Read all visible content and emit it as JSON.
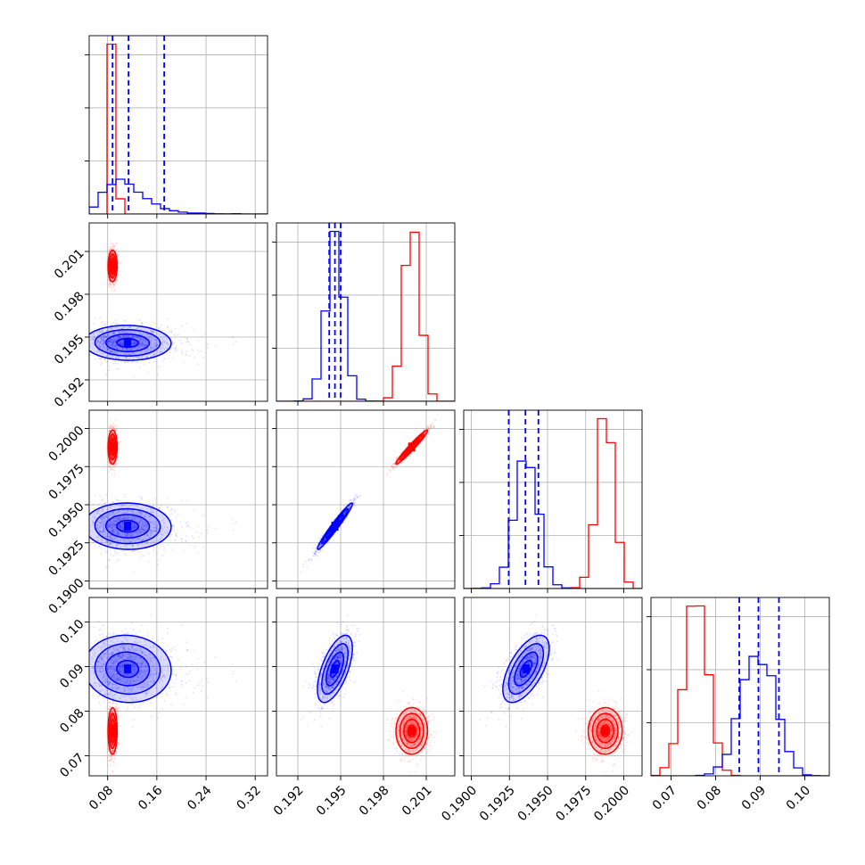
{
  "chart_data": {
    "type": "corner",
    "parameters": 4,
    "series": [
      {
        "color": "#ff0000",
        "params": [
          {
            "mean": 0.088,
            "sd": 0.004,
            "pos": "left"
          },
          {
            "mean": 0.2,
            "sd": 0.00055
          },
          {
            "mean": 0.1988,
            "sd": 0.00055
          },
          {
            "mean": 0.0755,
            "sd": 0.0026
          }
        ],
        "corr": [
          [
            1,
            0,
            0,
            0
          ],
          [
            0,
            1,
            0.97,
            0
          ],
          [
            0,
            0.97,
            1,
            0
          ],
          [
            0,
            0,
            0,
            1
          ]
        ]
      },
      {
        "color": "#0000ff",
        "params": [
          {
            "mean": 0.11,
            "sd": 0.033,
            "pos": "skew"
          },
          {
            "mean": 0.1946,
            "sd": 0.0006
          },
          {
            "mean": 0.1936,
            "sd": 0.00075
          },
          {
            "mean": 0.0895,
            "sd": 0.0037
          }
        ],
        "corr": [
          [
            1,
            0,
            0,
            0
          ],
          [
            0,
            1,
            0.97,
            0.6
          ],
          [
            0,
            0.97,
            1,
            0.6
          ],
          [
            0,
            0.6,
            0.6,
            1
          ]
        ]
      }
    ],
    "quantile_lines": {
      "color": "#0000ff",
      "values": [
        [
          0.088,
          0.114,
          0.172
        ],
        [
          0.1942,
          0.1946,
          0.195
        ],
        [
          0.19245,
          0.19355,
          0.1944
        ],
        [
          0.0853,
          0.0896,
          0.0942
        ]
      ]
    },
    "axes": [
      {
        "range": [
          0.05,
          0.34
        ],
        "ticks": [
          "0.08",
          "0.16",
          "0.24",
          "0.32"
        ]
      },
      {
        "range": [
          0.1905,
          0.203
        ],
        "ticks": [
          "0.192",
          "0.195",
          "0.198",
          "0.201"
        ]
      },
      {
        "range": [
          0.1895,
          0.2012
        ],
        "ticks": [
          "0.1900",
          "0.1925",
          "0.1950",
          "0.1975",
          "0.2000"
        ]
      },
      {
        "range": [
          0.0655,
          0.1055
        ],
        "ticks": [
          "0.07",
          "0.08",
          "0.09",
          "0.10"
        ]
      }
    ],
    "grid": true
  }
}
